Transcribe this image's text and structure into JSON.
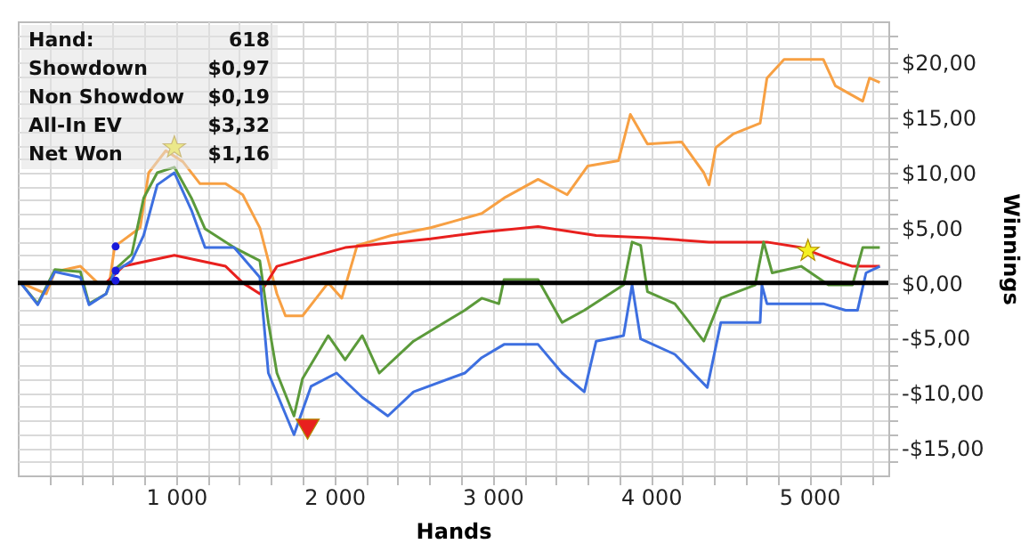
{
  "chart_data": {
    "type": "line",
    "xlabel": "Hands",
    "ylabel": "Winnings",
    "annotations": [
      "Hand:",
      "618",
      "Showdown",
      "$0,97",
      "Non Showdow",
      "$0,19",
      "All-In EV",
      "$3,32",
      "Net Won",
      "$1,16"
    ],
    "xlim": [
      0,
      5500
    ],
    "ylim": [
      -17.5,
      23.75
    ],
    "xticks": [
      {
        "value": 200,
        "label": null
      },
      {
        "value": 400,
        "label": null
      },
      {
        "value": 600,
        "label": null
      },
      {
        "value": 800,
        "label": null
      },
      {
        "value": 1000,
        "label": "1 000"
      },
      {
        "value": 1200,
        "label": null
      },
      {
        "value": 1400,
        "label": null
      },
      {
        "value": 1600,
        "label": null
      },
      {
        "value": 1800,
        "label": null
      },
      {
        "value": 2000,
        "label": "2 000"
      },
      {
        "value": 2200,
        "label": null
      },
      {
        "value": 2400,
        "label": null
      },
      {
        "value": 2600,
        "label": null
      },
      {
        "value": 2800,
        "label": null
      },
      {
        "value": 3000,
        "label": "3 000"
      },
      {
        "value": 3200,
        "label": null
      },
      {
        "value": 3400,
        "label": null
      },
      {
        "value": 3600,
        "label": null
      },
      {
        "value": 3800,
        "label": null
      },
      {
        "value": 4000,
        "label": "4 000"
      },
      {
        "value": 4200,
        "label": null
      },
      {
        "value": 4400,
        "label": null
      },
      {
        "value": 4600,
        "label": null
      },
      {
        "value": 4800,
        "label": null
      },
      {
        "value": 5000,
        "label": "5 000"
      },
      {
        "value": 5200,
        "label": null
      },
      {
        "value": 5400,
        "label": null
      }
    ],
    "yticks": [
      {
        "value": -16.25,
        "label": null
      },
      {
        "value": -15,
        "label": "-$15,00"
      },
      {
        "value": -13.75,
        "label": null
      },
      {
        "value": -12.5,
        "label": null
      },
      {
        "value": -11.25,
        "label": null
      },
      {
        "value": -10,
        "label": "-$10,00"
      },
      {
        "value": -8.75,
        "label": null
      },
      {
        "value": -7.5,
        "label": null
      },
      {
        "value": -6.25,
        "label": null
      },
      {
        "value": -5,
        "label": "-$5,00"
      },
      {
        "value": -3.75,
        "label": null
      },
      {
        "value": -2.5,
        "label": null
      },
      {
        "value": -1.25,
        "label": null
      },
      {
        "value": 0,
        "label": "$0,00"
      },
      {
        "value": 1.25,
        "label": null
      },
      {
        "value": 2.5,
        "label": null
      },
      {
        "value": 3.75,
        "label": null
      },
      {
        "value": 5,
        "label": "$5,00"
      },
      {
        "value": 6.25,
        "label": null
      },
      {
        "value": 7.5,
        "label": null
      },
      {
        "value": 8.75,
        "label": null
      },
      {
        "value": 10,
        "label": "$10,00"
      },
      {
        "value": 11.25,
        "label": null
      },
      {
        "value": 12.5,
        "label": null
      },
      {
        "value": 13.75,
        "label": null
      },
      {
        "value": 15,
        "label": "$15,00"
      },
      {
        "value": 16.25,
        "label": null
      },
      {
        "value": 17.5,
        "label": null
      },
      {
        "value": 18.75,
        "label": null
      },
      {
        "value": 20,
        "label": "$20,00"
      },
      {
        "value": 21.25,
        "label": null
      },
      {
        "value": 22.5,
        "label": null
      }
    ],
    "grid": true,
    "ref_lines": [
      {
        "axis": "y",
        "value": 0,
        "color": "#000000"
      }
    ],
    "series": [
      {
        "color": "#f7a043",
        "x": [
          18,
          180,
          234,
          396,
          504,
          579,
          612,
          773,
          827,
          935,
          1043,
          1151,
          1313,
          1421,
          1529,
          1583,
          1637,
          1691,
          1799,
          1853,
          1961,
          2047,
          2144,
          2360,
          2608,
          2931,
          3072,
          3287,
          3471,
          3600,
          3795,
          3870,
          3978,
          4194,
          4334,
          4367,
          4410,
          4518,
          4690,
          4733,
          4841,
          5089,
          5165,
          5338,
          5381,
          5446
        ],
        "values": [
          0,
          -1,
          1,
          1.5,
          0,
          0,
          3.3,
          5,
          10,
          12,
          11,
          9,
          9,
          8,
          5,
          2,
          -1,
          -3,
          -3,
          -2,
          0,
          -1.4,
          3.4,
          4.3,
          5,
          6.3,
          7.7,
          9.4,
          8,
          10.6,
          11.1,
          15.3,
          12.6,
          12.8,
          10,
          8.9,
          12.3,
          13.5,
          14.5,
          18.6,
          20.3,
          20.3,
          17.9,
          16.5,
          18.6,
          18.2
        ]
      },
      {
        "color": "#e8201e",
        "x": [
          18,
          558,
          666,
          989,
          1313,
          1421,
          1529,
          1637,
          2068,
          2608,
          2931,
          3287,
          3654,
          3978,
          4367,
          4733,
          4949,
          5165,
          5273,
          5446
        ],
        "values": [
          0,
          0,
          1.5,
          2.5,
          1.5,
          0,
          -1,
          1.5,
          3.2,
          4,
          4.6,
          5.1,
          4.3,
          4.1,
          3.7,
          3.7,
          3.2,
          2,
          1.5,
          1.5
        ]
      },
      {
        "color": "#5b9a3a",
        "x": [
          18,
          126,
          234,
          396,
          450,
          558,
          612,
          720,
          795,
          881,
          989,
          1097,
          1183,
          1367,
          1529,
          1583,
          1637,
          1745,
          1799,
          1961,
          2068,
          2176,
          2284,
          2500,
          2824,
          2931,
          3039,
          3072,
          3287,
          3439,
          3579,
          3827,
          3881,
          3935,
          3978,
          4151,
          4334,
          4442,
          4658,
          4712,
          4766,
          4949,
          5122,
          5273,
          5338,
          5446
        ],
        "values": [
          0,
          -1.9,
          1.2,
          1,
          -1.9,
          -1,
          1.2,
          2.6,
          7.7,
          10,
          10.5,
          7.7,
          4.9,
          3.2,
          2,
          -3.6,
          -8.2,
          -12.1,
          -8.7,
          -4.8,
          -7,
          -4.8,
          -8.2,
          -5.3,
          -2.5,
          -1.4,
          -1.9,
          0.3,
          0.3,
          -3.6,
          -2.5,
          -0.2,
          3.7,
          3.4,
          -0.8,
          -1.9,
          -5.3,
          -1.4,
          -0.2,
          3.7,
          0.9,
          1.5,
          -0.2,
          -0.2,
          3.2,
          3.2
        ]
      },
      {
        "color": "#3d6fe0",
        "x": [
          18,
          126,
          234,
          396,
          450,
          558,
          612,
          720,
          795,
          881,
          989,
          1097,
          1183,
          1367,
          1529,
          1583,
          1745,
          1853,
          2014,
          2176,
          2338,
          2500,
          2824,
          2931,
          3072,
          3287,
          3439,
          3579,
          3654,
          3827,
          3881,
          3935,
          4151,
          4356,
          4442,
          4690,
          4701,
          4733,
          5089,
          5230,
          5305,
          5359,
          5446
        ],
        "values": [
          0,
          -2,
          1,
          0.5,
          -2,
          -1,
          1,
          2,
          4.3,
          8.9,
          10,
          6.6,
          3.2,
          3.2,
          0.5,
          -8.2,
          -13.8,
          -9.4,
          -8.2,
          -10.4,
          -12.1,
          -9.9,
          -8.2,
          -6.8,
          -5.6,
          -5.6,
          -8.2,
          -9.9,
          -5.3,
          -4.8,
          -0.2,
          -5.1,
          -6.5,
          -9.5,
          -3.6,
          -3.6,
          -0.2,
          -1.9,
          -1.9,
          -2.5,
          -2.5,
          0.9,
          1.5
        ]
      },
      {
        "type": "scatter",
        "marker": "circle",
        "color": "#1a1adb",
        "x": [
          618,
          618,
          618
        ],
        "values": [
          3.3,
          1.1,
          0.2
        ]
      },
      {
        "type": "scatter",
        "marker": "star",
        "color": "#f5f020",
        "x": [
          989,
          4992
        ],
        "values": [
          12.3,
          2.9
        ]
      },
      {
        "type": "scatter",
        "marker": "triangle",
        "color": "#e8201e",
        "x": [
          1831
        ],
        "values": [
          -13.3
        ]
      }
    ]
  }
}
